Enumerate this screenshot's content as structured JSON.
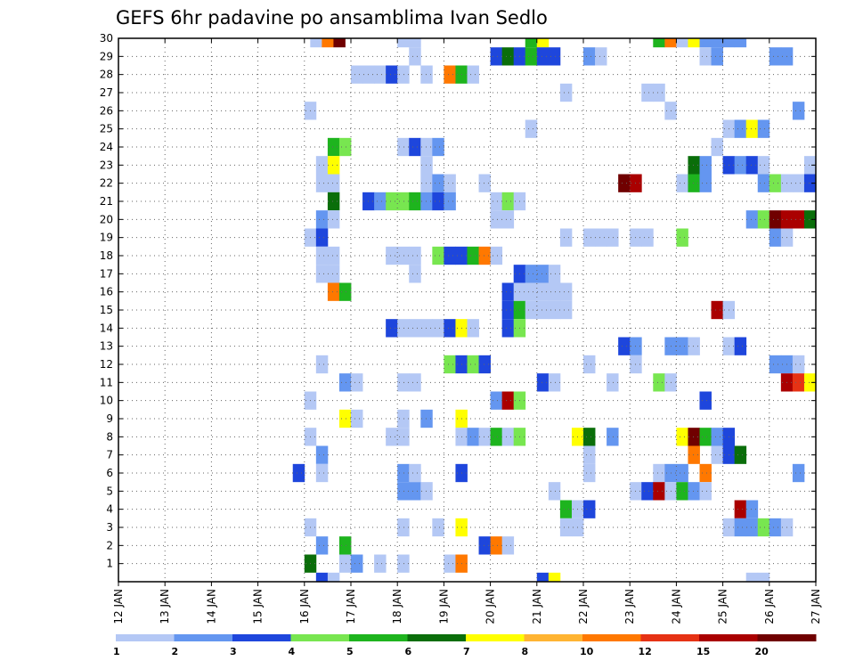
{
  "chart_data": {
    "type": "heatmap",
    "title": "GEFS 6hr padavine po ansamblima Ivan Sedlo",
    "x_labels": [
      "12 JAN",
      "13 JAN",
      "14 JAN",
      "15 JAN",
      "16 JAN",
      "17 JAN",
      "18 JAN",
      "19 JAN",
      "20 JAN",
      "21 JAN",
      "22 JAN",
      "23 JAN",
      "24 JAN",
      "25 JAN",
      "26 JAN",
      "27 JAN"
    ],
    "y_labels": [
      "1",
      "2",
      "3",
      "4",
      "5",
      "6",
      "7",
      "8",
      "9",
      "10",
      "11",
      "12",
      "13",
      "14",
      "15",
      "16",
      "17",
      "18",
      "19",
      "20",
      "21",
      "22",
      "23",
      "24",
      "25",
      "26",
      "27",
      "28",
      "29",
      "30"
    ],
    "x_range_days": [
      12,
      27
    ],
    "y_range": [
      0,
      30
    ],
    "steps_per_day": 4,
    "grid": "dotted",
    "colorbar": {
      "labels": [
        "1",
        "2",
        "3",
        "4",
        "5",
        "6",
        "7",
        "8",
        "10",
        "12",
        "15",
        "20"
      ],
      "colors": [
        "#b4c8f5",
        "#6496f0",
        "#1e46dc",
        "#78e650",
        "#1eb41e",
        "#0a6e0a",
        "#ffff00",
        "#ffb432",
        "#ff7800",
        "#e63214",
        "#aa0000",
        "#700000"
      ]
    },
    "cells": [
      [
        30,
        "16 03",
        1
      ],
      [
        30,
        "16 09",
        10
      ],
      [
        30,
        "16 15",
        20
      ],
      [
        30,
        "18 00",
        1
      ],
      [
        30,
        "18 06",
        1
      ],
      [
        30,
        "20 18",
        5
      ],
      [
        30,
        "21 00",
        7
      ],
      [
        30,
        "23 12",
        5
      ],
      [
        30,
        "23 18",
        10
      ],
      [
        30,
        "24 00",
        1
      ],
      [
        30,
        "24 06",
        7
      ],
      [
        30,
        "24 12",
        2
      ],
      [
        30,
        "24 18",
        2
      ],
      [
        30,
        "25 00",
        2
      ],
      [
        30,
        "25 06",
        2
      ],
      [
        29,
        "18 06",
        1
      ],
      [
        29,
        "20 00",
        3
      ],
      [
        29,
        "20 06",
        6
      ],
      [
        29,
        "20 12",
        3
      ],
      [
        29,
        "20 18",
        5
      ],
      [
        29,
        "21 00",
        3
      ],
      [
        29,
        "21 06",
        3
      ],
      [
        29,
        "22 00",
        2
      ],
      [
        29,
        "22 06",
        1
      ],
      [
        29,
        "24 12",
        1
      ],
      [
        29,
        "24 18",
        2
      ],
      [
        29,
        "26 00",
        2
      ],
      [
        29,
        "26 06",
        2
      ],
      [
        28,
        "17 00",
        1
      ],
      [
        28,
        "17 06",
        1
      ],
      [
        28,
        "17 12",
        1
      ],
      [
        28,
        "17 18",
        3
      ],
      [
        28,
        "18 00",
        1
      ],
      [
        28,
        "18 12",
        1
      ],
      [
        28,
        "19 00",
        10
      ],
      [
        28,
        "19 06",
        5
      ],
      [
        28,
        "19 12",
        1
      ],
      [
        27,
        "21 12",
        1
      ],
      [
        27,
        "23 06",
        1
      ],
      [
        27,
        "23 12",
        1
      ],
      [
        26,
        "16 00",
        1
      ],
      [
        26,
        "23 18",
        1
      ],
      [
        26,
        "26 12",
        2
      ],
      [
        25,
        "20 18",
        1
      ],
      [
        25,
        "25 00",
        1
      ],
      [
        25,
        "25 06",
        2
      ],
      [
        25,
        "25 12",
        7
      ],
      [
        25,
        "25 18",
        2
      ],
      [
        24,
        "16 12",
        5
      ],
      [
        24,
        "16 18",
        4
      ],
      [
        24,
        "18 00",
        1
      ],
      [
        24,
        "18 06",
        3
      ],
      [
        24,
        "18 12",
        1
      ],
      [
        24,
        "18 18",
        2
      ],
      [
        24,
        "24 18",
        1
      ],
      [
        23,
        "16 06",
        1
      ],
      [
        23,
        "16 12",
        7
      ],
      [
        23,
        "18 12",
        1
      ],
      [
        23,
        "24 06",
        6
      ],
      [
        23,
        "24 12",
        2
      ],
      [
        23,
        "25 00",
        3
      ],
      [
        23,
        "25 06",
        2
      ],
      [
        23,
        "25 12",
        3
      ],
      [
        23,
        "25 18",
        1
      ],
      [
        23,
        "26 18",
        1
      ],
      [
        22,
        "16 06",
        1
      ],
      [
        22,
        "16 12",
        1
      ],
      [
        22,
        "18 12",
        1
      ],
      [
        22,
        "18 18",
        2
      ],
      [
        22,
        "19 00",
        1
      ],
      [
        22,
        "19 18",
        1
      ],
      [
        22,
        "22 18",
        20
      ],
      [
        22,
        "23 00",
        15
      ],
      [
        22,
        "24 00",
        1
      ],
      [
        22,
        "24 06",
        5
      ],
      [
        22,
        "24 12",
        2
      ],
      [
        22,
        "25 18",
        2
      ],
      [
        22,
        "26 00",
        4
      ],
      [
        22,
        "26 06",
        1
      ],
      [
        22,
        "26 12",
        1
      ],
      [
        22,
        "26 18",
        3
      ],
      [
        21,
        "16 12",
        6
      ],
      [
        21,
        "17 06",
        3
      ],
      [
        21,
        "17 12",
        2
      ],
      [
        21,
        "17 18",
        4
      ],
      [
        21,
        "18 00",
        4
      ],
      [
        21,
        "18 06",
        5
      ],
      [
        21,
        "18 12",
        2
      ],
      [
        21,
        "18 18",
        3
      ],
      [
        21,
        "19 00",
        2
      ],
      [
        21,
        "20 00",
        1
      ],
      [
        21,
        "20 06",
        4
      ],
      [
        21,
        "20 12",
        1
      ],
      [
        20,
        "16 06",
        2
      ],
      [
        20,
        "16 12",
        1
      ],
      [
        20,
        "20 00",
        1
      ],
      [
        20,
        "20 06",
        1
      ],
      [
        20,
        "25 12",
        2
      ],
      [
        20,
        "25 18",
        4
      ],
      [
        20,
        "26 00",
        20
      ],
      [
        20,
        "26 06",
        15
      ],
      [
        20,
        "26 12",
        15
      ],
      [
        20,
        "26 18",
        6
      ],
      [
        19,
        "16 00",
        1
      ],
      [
        19,
        "16 06",
        3
      ],
      [
        19,
        "21 12",
        1
      ],
      [
        19,
        "22 00",
        1
      ],
      [
        19,
        "22 06",
        1
      ],
      [
        19,
        "22 12",
        1
      ],
      [
        19,
        "23 00",
        1
      ],
      [
        19,
        "23 06",
        1
      ],
      [
        19,
        "24 00",
        4
      ],
      [
        19,
        "26 00",
        2
      ],
      [
        19,
        "26 06",
        1
      ],
      [
        18,
        "16 06",
        1
      ],
      [
        18,
        "16 12",
        1
      ],
      [
        18,
        "17 18",
        1
      ],
      [
        18,
        "18 00",
        1
      ],
      [
        18,
        "18 06",
        1
      ],
      [
        18,
        "18 18",
        4
      ],
      [
        18,
        "19 00",
        3
      ],
      [
        18,
        "19 06",
        3
      ],
      [
        18,
        "19 12",
        5
      ],
      [
        18,
        "19 18",
        10
      ],
      [
        18,
        "20 00",
        1
      ],
      [
        17,
        "16 06",
        1
      ],
      [
        17,
        "16 12",
        1
      ],
      [
        17,
        "18 06",
        1
      ],
      [
        17,
        "20 12",
        3
      ],
      [
        17,
        "20 18",
        2
      ],
      [
        17,
        "21 00",
        2
      ],
      [
        17,
        "21 06",
        1
      ],
      [
        16,
        "16 12",
        10
      ],
      [
        16,
        "16 18",
        5
      ],
      [
        16,
        "20 06",
        3
      ],
      [
        16,
        "20 12",
        1
      ],
      [
        16,
        "20 18",
        1
      ],
      [
        16,
        "21 00",
        1
      ],
      [
        16,
        "21 06",
        1
      ],
      [
        16,
        "21 12",
        1
      ],
      [
        15,
        "20 06",
        3
      ],
      [
        15,
        "20 12",
        5
      ],
      [
        15,
        "20 18",
        1
      ],
      [
        15,
        "21 00",
        1
      ],
      [
        15,
        "21 06",
        1
      ],
      [
        15,
        "21 12",
        1
      ],
      [
        15,
        "24 18",
        15
      ],
      [
        15,
        "25 00",
        1
      ],
      [
        14,
        "17 18",
        3
      ],
      [
        14,
        "18 00",
        1
      ],
      [
        14,
        "18 06",
        1
      ],
      [
        14,
        "18 12",
        1
      ],
      [
        14,
        "18 18",
        1
      ],
      [
        14,
        "19 00",
        3
      ],
      [
        14,
        "19 06",
        7
      ],
      [
        14,
        "19 12",
        1
      ],
      [
        14,
        "20 06",
        3
      ],
      [
        14,
        "20 12",
        4
      ],
      [
        13,
        "22 18",
        3
      ],
      [
        13,
        "23 00",
        2
      ],
      [
        13,
        "23 18",
        2
      ],
      [
        13,
        "24 00",
        2
      ],
      [
        13,
        "24 06",
        1
      ],
      [
        13,
        "25 00",
        1
      ],
      [
        13,
        "25 06",
        3
      ],
      [
        12,
        "16 06",
        1
      ],
      [
        12,
        "19 00",
        4
      ],
      [
        12,
        "19 06",
        3
      ],
      [
        12,
        "19 12",
        4
      ],
      [
        12,
        "19 18",
        3
      ],
      [
        12,
        "22 00",
        1
      ],
      [
        12,
        "23 00",
        1
      ],
      [
        12,
        "26 00",
        2
      ],
      [
        12,
        "26 06",
        2
      ],
      [
        12,
        "26 12",
        1
      ],
      [
        11,
        "16 18",
        2
      ],
      [
        11,
        "17 00",
        1
      ],
      [
        11,
        "18 00",
        1
      ],
      [
        11,
        "18 06",
        1
      ],
      [
        11,
        "21 00",
        3
      ],
      [
        11,
        "21 06",
        1
      ],
      [
        11,
        "22 12",
        1
      ],
      [
        11,
        "23 12",
        4
      ],
      [
        11,
        "23 18",
        1
      ],
      [
        11,
        "26 06",
        15
      ],
      [
        11,
        "26 12",
        12
      ],
      [
        11,
        "26 18",
        7
      ],
      [
        10,
        "16 00",
        1
      ],
      [
        10,
        "20 00",
        2
      ],
      [
        10,
        "20 06",
        15
      ],
      [
        10,
        "20 12",
        4
      ],
      [
        10,
        "24 12",
        3
      ],
      [
        9,
        "16 18",
        7
      ],
      [
        9,
        "17 00",
        1
      ],
      [
        9,
        "18 00",
        1
      ],
      [
        9,
        "18 12",
        2
      ],
      [
        9,
        "19 06",
        7
      ],
      [
        8,
        "16 00",
        1
      ],
      [
        8,
        "17 18",
        1
      ],
      [
        8,
        "18 00",
        1
      ],
      [
        8,
        "19 06",
        1
      ],
      [
        8,
        "19 12",
        2
      ],
      [
        8,
        "19 18",
        1
      ],
      [
        8,
        "20 00",
        5
      ],
      [
        8,
        "20 06",
        1
      ],
      [
        8,
        "20 12",
        4
      ],
      [
        8,
        "21 18",
        7
      ],
      [
        8,
        "22 00",
        6
      ],
      [
        8,
        "22 12",
        2
      ],
      [
        8,
        "24 00",
        7
      ],
      [
        8,
        "24 06",
        20
      ],
      [
        8,
        "24 12",
        5
      ],
      [
        8,
        "24 18",
        2
      ],
      [
        8,
        "25 00",
        3
      ],
      [
        7,
        "16 06",
        2
      ],
      [
        7,
        "22 00",
        1
      ],
      [
        7,
        "24 06",
        10
      ],
      [
        7,
        "24 18",
        1
      ],
      [
        7,
        "25 00",
        3
      ],
      [
        7,
        "25 06",
        6
      ],
      [
        6,
        "15 18",
        3
      ],
      [
        6,
        "16 06",
        1
      ],
      [
        6,
        "18 00",
        2
      ],
      [
        6,
        "18 06",
        1
      ],
      [
        6,
        "19 06",
        3
      ],
      [
        6,
        "22 00",
        1
      ],
      [
        6,
        "23 12",
        1
      ],
      [
        6,
        "23 18",
        2
      ],
      [
        6,
        "24 00",
        2
      ],
      [
        6,
        "24 12",
        10
      ],
      [
        6,
        "26 12",
        2
      ],
      [
        5,
        "18 00",
        2
      ],
      [
        5,
        "18 06",
        2
      ],
      [
        5,
        "18 12",
        1
      ],
      [
        5,
        "21 06",
        1
      ],
      [
        5,
        "23 00",
        1
      ],
      [
        5,
        "23 06",
        3
      ],
      [
        5,
        "23 12",
        15
      ],
      [
        5,
        "23 18",
        1
      ],
      [
        5,
        "24 00",
        5
      ],
      [
        5,
        "24 06",
        2
      ],
      [
        5,
        "24 12",
        1
      ],
      [
        4,
        "21 12",
        5
      ],
      [
        4,
        "21 18",
        1
      ],
      [
        4,
        "22 00",
        3
      ],
      [
        4,
        "25 06",
        15
      ],
      [
        4,
        "25 12",
        2
      ],
      [
        3,
        "16 00",
        1
      ],
      [
        3,
        "18 00",
        1
      ],
      [
        3,
        "18 18",
        1
      ],
      [
        3,
        "19 06",
        7
      ],
      [
        3,
        "21 12",
        1
      ],
      [
        3,
        "21 18",
        1
      ],
      [
        3,
        "25 00",
        1
      ],
      [
        3,
        "25 06",
        2
      ],
      [
        3,
        "25 12",
        2
      ],
      [
        3,
        "25 18",
        4
      ],
      [
        3,
        "26 00",
        2
      ],
      [
        3,
        "26 06",
        1
      ],
      [
        2,
        "16 06",
        2
      ],
      [
        2,
        "16 18",
        5
      ],
      [
        2,
        "19 18",
        3
      ],
      [
        2,
        "20 00",
        10
      ],
      [
        2,
        "20 06",
        1
      ],
      [
        1,
        "16 00",
        6
      ],
      [
        1,
        "16 18",
        1
      ],
      [
        1,
        "17 00",
        2
      ],
      [
        1,
        "17 12",
        1
      ],
      [
        1,
        "18 00",
        1
      ],
      [
        1,
        "19 00",
        1
      ],
      [
        1,
        "19 06",
        10
      ],
      [
        0,
        "16 06",
        3
      ],
      [
        0,
        "16 12",
        1
      ],
      [
        0,
        "21 00",
        3
      ],
      [
        0,
        "21 06",
        7
      ],
      [
        0,
        "25 12",
        1
      ],
      [
        0,
        "25 18",
        1
      ]
    ]
  }
}
